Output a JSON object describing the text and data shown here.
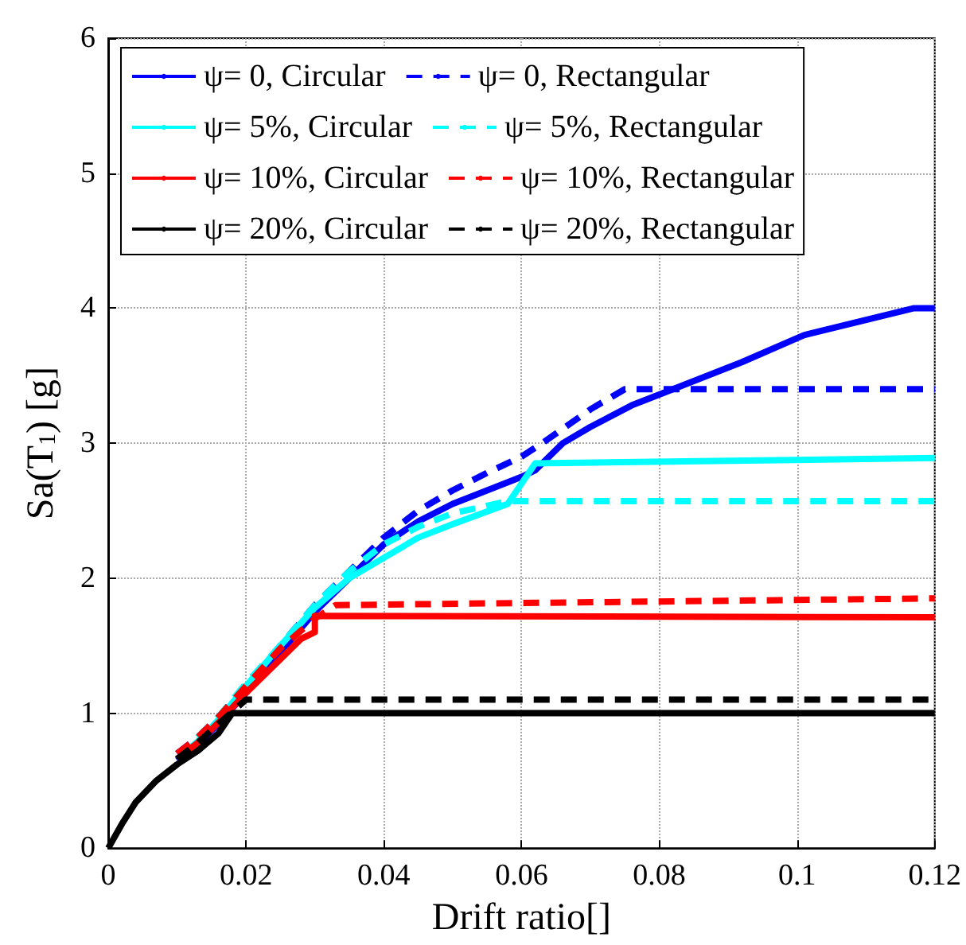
{
  "chart_data": {
    "type": "line",
    "xlabel": "Drift ratio[]",
    "ylabel": "Sa(T$_{1}$) [g]",
    "xlim": [
      0,
      0.12
    ],
    "ylim": [
      0,
      6
    ],
    "xticks": [
      0,
      0.02,
      0.04,
      0.06,
      0.08,
      0.1,
      0.12
    ],
    "yticks": [
      0,
      1,
      2,
      3,
      4,
      5,
      6
    ],
    "grid": true,
    "legend": "top left",
    "marker": "none",
    "series": [
      {
        "name": "ψ= 0, Circular",
        "color": "#0000ff",
        "line_style": "solid",
        "x": [
          0.01,
          0.013,
          0.016,
          0.02,
          0.025,
          0.03,
          0.035,
          0.04,
          0.045,
          0.05,
          0.055,
          0.06,
          0.062,
          0.066,
          0.07,
          0.076,
          0.082,
          0.092,
          0.101,
          0.117,
          0.12
        ],
        "values": [
          0.65,
          0.77,
          0.92,
          1.15,
          1.45,
          1.75,
          2.0,
          2.25,
          2.42,
          2.55,
          2.65,
          2.75,
          2.8,
          3.0,
          3.12,
          3.28,
          3.4,
          3.6,
          3.8,
          4.0,
          4.0
        ]
      },
      {
        "name": "ψ= 0, Rectangular",
        "color": "#0000ff",
        "line_style": "dashed",
        "x": [
          0.01,
          0.013,
          0.016,
          0.02,
          0.025,
          0.03,
          0.035,
          0.04,
          0.045,
          0.05,
          0.055,
          0.06,
          0.063,
          0.07,
          0.075,
          0.12
        ],
        "values": [
          0.7,
          0.82,
          0.97,
          1.2,
          1.5,
          1.8,
          2.05,
          2.3,
          2.5,
          2.65,
          2.78,
          2.9,
          3.0,
          3.25,
          3.4,
          3.4
        ]
      },
      {
        "name": "ψ= 5%, Circular",
        "color": "#00ffff",
        "line_style": "solid",
        "x": [
          0.01,
          0.013,
          0.016,
          0.02,
          0.025,
          0.03,
          0.035,
          0.04,
          0.045,
          0.05,
          0.058,
          0.062,
          0.12
        ],
        "values": [
          0.66,
          0.79,
          0.95,
          1.2,
          1.5,
          1.78,
          2.0,
          2.15,
          2.3,
          2.4,
          2.55,
          2.85,
          2.89
        ]
      },
      {
        "name": "ψ= 5%, Rectangular",
        "color": "#00ffff",
        "line_style": "dashed",
        "x": [
          0.013,
          0.016,
          0.02,
          0.025,
          0.03,
          0.035,
          0.04,
          0.045,
          0.05,
          0.058,
          0.12
        ],
        "values": [
          0.82,
          0.97,
          1.22,
          1.5,
          1.8,
          2.05,
          2.25,
          2.38,
          2.48,
          2.57,
          2.57
        ]
      },
      {
        "name": "ψ= 10%, Circular",
        "color": "#ff0000",
        "line_style": "solid",
        "x": [
          0.01,
          0.013,
          0.016,
          0.02,
          0.025,
          0.028,
          0.03,
          0.03,
          0.12
        ],
        "values": [
          0.66,
          0.78,
          0.93,
          1.15,
          1.4,
          1.55,
          1.6,
          1.72,
          1.71
        ]
      },
      {
        "name": "ψ= 10%, Rectangular",
        "color": "#ff0000",
        "line_style": "dashed",
        "x": [
          0.01,
          0.013,
          0.016,
          0.02,
          0.025,
          0.03,
          0.033,
          0.12
        ],
        "values": [
          0.7,
          0.82,
          0.97,
          1.2,
          1.48,
          1.7,
          1.8,
          1.85
        ]
      },
      {
        "name": "ψ= 20%, Circular",
        "color": "#000000",
        "line_style": "solid",
        "x": [
          0,
          0.002,
          0.004,
          0.007,
          0.01,
          0.013,
          0.016,
          0.018,
          0.12
        ],
        "values": [
          0,
          0.18,
          0.34,
          0.5,
          0.62,
          0.72,
          0.85,
          1.0,
          1.0
        ]
      },
      {
        "name": "ψ= 20%, Rectangular",
        "color": "#000000",
        "line_style": "dashed",
        "x": [
          0.01,
          0.013,
          0.016,
          0.02,
          0.12
        ],
        "values": [
          0.66,
          0.78,
          0.92,
          1.1,
          1.1
        ]
      }
    ]
  }
}
